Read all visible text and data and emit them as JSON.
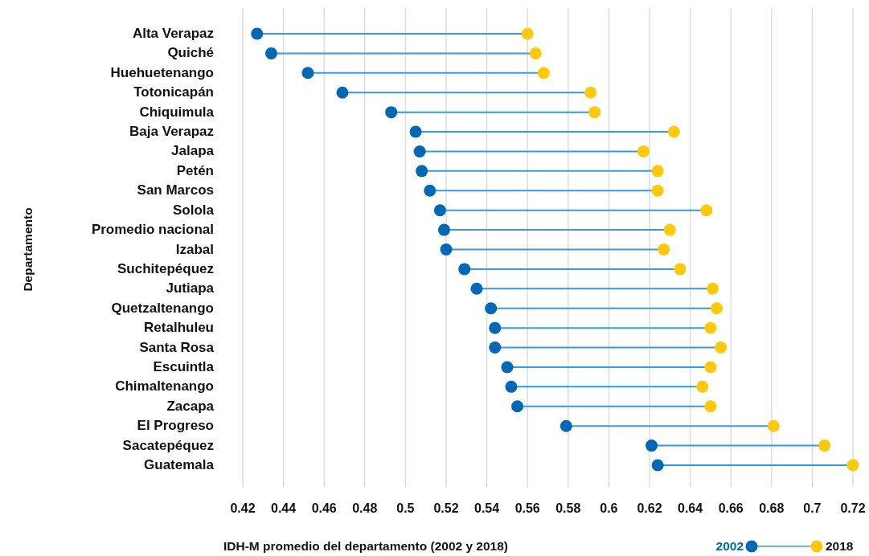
{
  "chart_data": {
    "type": "scatter",
    "orientation": "horizontal",
    "xlabel": "IDH-M promedio del departamento (2002 y 2018)",
    "ylabel": "Departamento",
    "categories": [
      "Alta Verapaz",
      "Quiché",
      "Huehuetenango",
      "Totonicapán",
      "Chiquimula",
      "Baja Verapaz",
      "Jalapa",
      "Petén",
      "San Marcos",
      "Solola",
      "Promedio nacional",
      "Izabal",
      "Suchitepéquez",
      "Jutiapa",
      "Quetzaltenango",
      "Retalhuleu",
      "Santa Rosa",
      "Escuintla",
      "Chimaltenango",
      "Zacapa",
      "El Progreso",
      "Sacatepéquez",
      "Guatemala"
    ],
    "series": [
      {
        "name": "2002",
        "color": "#0068b4",
        "values": [
          0.427,
          0.434,
          0.452,
          0.469,
          0.493,
          0.505,
          0.507,
          0.508,
          0.512,
          0.517,
          0.519,
          0.52,
          0.529,
          0.535,
          0.542,
          0.544,
          0.544,
          0.55,
          0.552,
          0.555,
          0.579,
          0.621,
          0.624
        ]
      },
      {
        "name": "2018",
        "color": "#ffc90a",
        "values": [
          0.56,
          0.564,
          0.568,
          0.591,
          0.593,
          0.632,
          0.617,
          0.624,
          0.624,
          0.648,
          0.63,
          0.627,
          0.635,
          0.651,
          0.653,
          0.65,
          0.655,
          0.65,
          0.646,
          0.65,
          0.681,
          0.706,
          0.72
        ]
      }
    ],
    "xlim": [
      0.42,
      0.72
    ],
    "xticks": [
      0.42,
      0.44,
      0.46,
      0.48,
      0.5,
      0.52,
      0.54,
      0.56,
      0.58,
      0.6,
      0.62,
      0.64,
      0.66,
      0.68,
      0.7,
      0.72
    ],
    "grid": "x",
    "legend": "bottom right",
    "marker": "circle"
  }
}
